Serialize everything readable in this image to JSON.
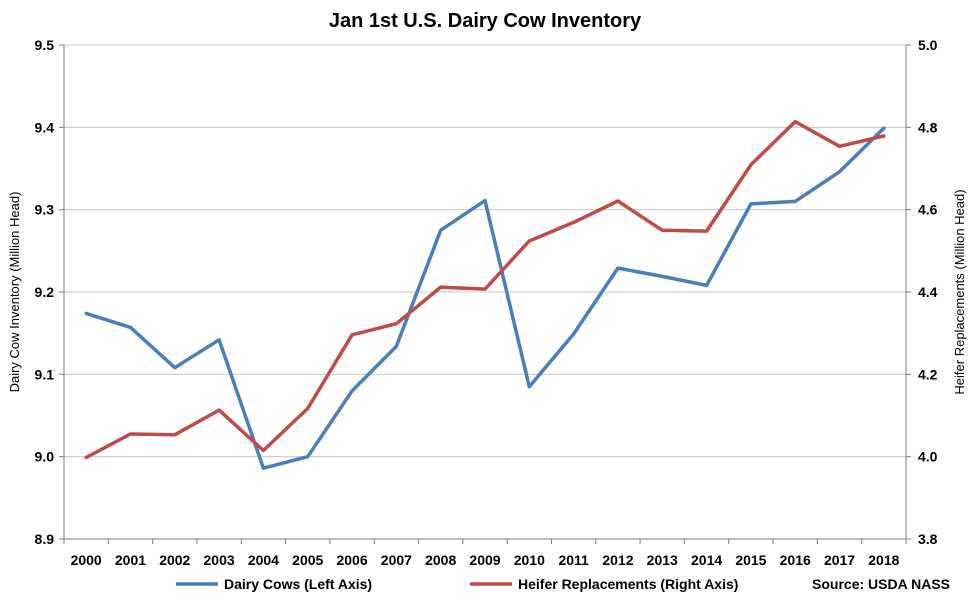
{
  "chart_data": {
    "type": "line",
    "title": "Jan 1st U.S. Dairy Cow Inventory",
    "ylabel_left": "Dairy Cow Inventory (Million Head)",
    "ylabel_right": "Heifer Replacements (Million Head)",
    "source": "Source: USDA NASS",
    "categories": [
      "2000",
      "2001",
      "2002",
      "2003",
      "2004",
      "2005",
      "2006",
      "2007",
      "2008",
      "2009",
      "2010",
      "2011",
      "2012",
      "2013",
      "2014",
      "2015",
      "2016",
      "2017",
      "2018"
    ],
    "ylim_left": [
      8.9,
      9.5
    ],
    "yticks_left": [
      "8.9",
      "9.0",
      "9.1",
      "9.2",
      "9.3",
      "9.4",
      "9.5"
    ],
    "ylim_right": [
      3.8,
      5.0
    ],
    "yticks_right": [
      "3.8",
      "4.0",
      "4.2",
      "4.4",
      "4.6",
      "4.8",
      "5.0"
    ],
    "grid": "horizontal",
    "legend_position": "bottom",
    "series": [
      {
        "name": "Dairy Cows (Left Axis)",
        "axis": "left",
        "color": "#4a7ebb",
        "values": [
          9.174,
          9.157,
          9.108,
          9.142,
          8.986,
          9.0,
          9.08,
          9.134,
          9.275,
          9.311,
          9.085,
          9.149,
          9.229,
          9.219,
          9.208,
          9.307,
          9.31,
          9.346,
          9.399
        ]
      },
      {
        "name": "Heifer Replacements (Right Axis)",
        "axis": "right",
        "color": "#be4b48",
        "values": [
          3.998,
          4.055,
          4.053,
          4.113,
          4.015,
          4.117,
          4.296,
          4.323,
          4.412,
          4.407,
          4.524,
          4.569,
          4.621,
          4.55,
          4.548,
          4.709,
          4.814,
          4.754,
          4.779
        ]
      }
    ]
  }
}
